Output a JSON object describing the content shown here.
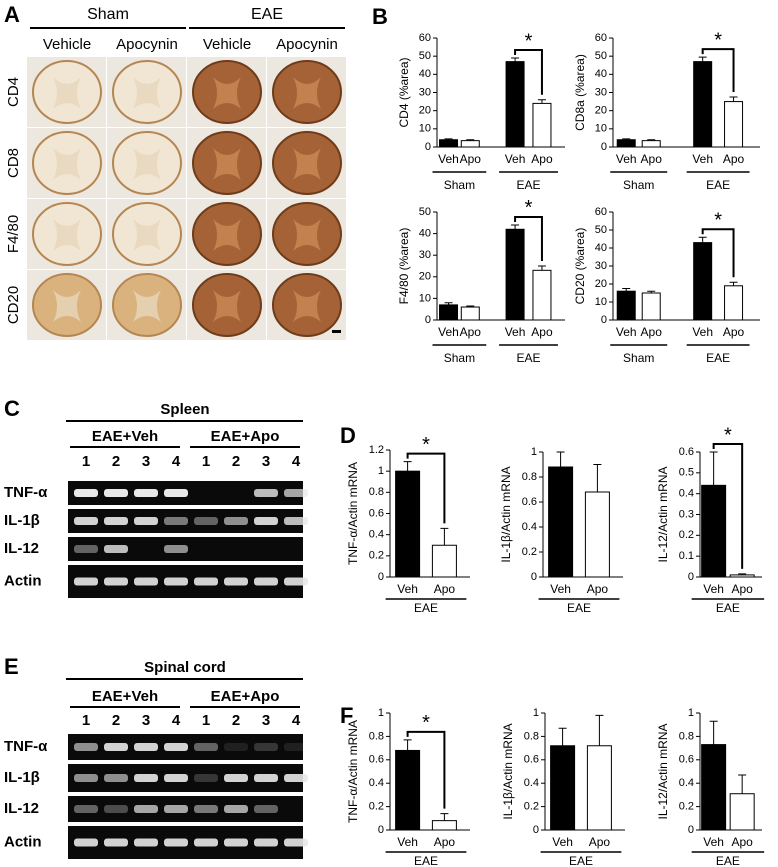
{
  "panels": {
    "A": {
      "letter": "A",
      "groups": [
        "Sham",
        "EAE"
      ],
      "conditions": [
        "Vehicle",
        "Apocynin",
        "Vehicle",
        "Apocynin"
      ],
      "stains": [
        "CD4",
        "CD8",
        "F4/80",
        "CD20"
      ]
    },
    "B": {
      "letter": "B"
    },
    "C": {
      "letter": "C",
      "tissue": "Spleen",
      "groups": [
        "EAE+Veh",
        "EAE+Apo"
      ],
      "lanes": [
        "1",
        "2",
        "3",
        "4",
        "1",
        "2",
        "3",
        "4"
      ],
      "genes": [
        "TNF-α",
        "IL-1β",
        "IL-12",
        "Actin"
      ]
    },
    "D": {
      "letter": "D"
    },
    "E": {
      "letter": "E",
      "tissue": "Spinal cord",
      "groups": [
        "EAE+Veh",
        "EAE+Apo"
      ],
      "lanes": [
        "1",
        "2",
        "3",
        "4",
        "1",
        "2",
        "3",
        "4"
      ],
      "genes": [
        "TNF-α",
        "IL-1β",
        "IL-12",
        "Actin"
      ]
    },
    "F": {
      "letter": "F"
    }
  },
  "chart_data": [
    {
      "type": "bar",
      "ylabel": "CD4 (%area)",
      "categories": [
        "Veh",
        "Apo",
        "Veh",
        "Apo"
      ],
      "groups": [
        "Sham",
        "EAE"
      ],
      "values": [
        4,
        3.5,
        47,
        24
      ],
      "errors": [
        0.5,
        0.5,
        2,
        2
      ],
      "bar_colors": [
        "#000000",
        "#ffffff"
      ],
      "ylim": [
        0,
        60
      ],
      "yticks": [
        0,
        10,
        20,
        30,
        40,
        50,
        60
      ],
      "significance": {
        "label": "*",
        "pair": [
          2,
          3
        ]
      }
    },
    {
      "type": "bar",
      "ylabel": "CD8a (%area)",
      "categories": [
        "Veh",
        "Apo",
        "Veh",
        "Apo"
      ],
      "groups": [
        "Sham",
        "EAE"
      ],
      "values": [
        4,
        3.5,
        47,
        25
      ],
      "errors": [
        0.5,
        0.5,
        2.5,
        2.5
      ],
      "bar_colors": [
        "#000000",
        "#ffffff"
      ],
      "ylim": [
        0,
        60
      ],
      "yticks": [
        0,
        10,
        20,
        30,
        40,
        50,
        60
      ],
      "significance": {
        "label": "*",
        "pair": [
          2,
          3
        ]
      }
    },
    {
      "type": "bar",
      "ylabel": "F4/80 (%area)",
      "categories": [
        "Veh",
        "Apo",
        "Veh",
        "Apo"
      ],
      "groups": [
        "Sham",
        "EAE"
      ],
      "values": [
        7,
        6,
        42,
        23
      ],
      "errors": [
        1,
        0.5,
        2,
        2
      ],
      "bar_colors": [
        "#000000",
        "#ffffff"
      ],
      "ylim": [
        0,
        50
      ],
      "yticks": [
        0,
        10,
        20,
        30,
        40,
        50
      ],
      "significance": {
        "label": "*",
        "pair": [
          2,
          3
        ]
      }
    },
    {
      "type": "bar",
      "ylabel": "CD20 (%area)",
      "categories": [
        "Veh",
        "Apo",
        "Veh",
        "Apo"
      ],
      "groups": [
        "Sham",
        "EAE"
      ],
      "values": [
        16,
        15,
        43,
        19
      ],
      "errors": [
        1.5,
        1,
        3,
        2
      ],
      "bar_colors": [
        "#000000",
        "#ffffff"
      ],
      "ylim": [
        0,
        60
      ],
      "yticks": [
        0,
        10,
        20,
        30,
        40,
        50,
        60
      ],
      "significance": {
        "label": "*",
        "pair": [
          2,
          3
        ]
      }
    },
    {
      "type": "bar",
      "ylabel": "TNF-α/Actin mRNA",
      "categories": [
        "Veh",
        "Apo"
      ],
      "groups": [
        "EAE"
      ],
      "values": [
        1.0,
        0.3
      ],
      "errors": [
        0.09,
        0.16
      ],
      "bar_colors": [
        "#000000",
        "#ffffff"
      ],
      "ylim": [
        0,
        1.2
      ],
      "yticks": [
        0,
        0.2,
        0.4,
        0.6,
        0.8,
        1,
        1.2
      ],
      "significance": {
        "label": "*",
        "pair": [
          0,
          1
        ]
      }
    },
    {
      "type": "bar",
      "ylabel": "IL-1β/Actin mRNA",
      "categories": [
        "Veh",
        "Apo"
      ],
      "groups": [
        "EAE"
      ],
      "values": [
        0.88,
        0.68
      ],
      "errors": [
        0.12,
        0.22
      ],
      "bar_colors": [
        "#000000",
        "#ffffff"
      ],
      "ylim": [
        0,
        1
      ],
      "yticks": [
        0,
        0.2,
        0.4,
        0.6,
        0.8,
        1
      ]
    },
    {
      "type": "bar",
      "ylabel": "IL-12/Actin mRNA",
      "categories": [
        "Veh",
        "Apo"
      ],
      "groups": [
        "EAE"
      ],
      "values": [
        0.44,
        0.01
      ],
      "errors": [
        0.16,
        0.005
      ],
      "bar_colors": [
        "#000000",
        "#ffffff"
      ],
      "ylim": [
        0,
        0.6
      ],
      "yticks": [
        0,
        0.1,
        0.2,
        0.3,
        0.4,
        0.5,
        0.6
      ],
      "significance": {
        "label": "*",
        "pair": [
          0,
          1
        ]
      }
    },
    {
      "type": "bar",
      "ylabel": "TNF-α/Actin mRNA",
      "categories": [
        "Veh",
        "Apo"
      ],
      "groups": [
        "EAE"
      ],
      "values": [
        0.68,
        0.08
      ],
      "errors": [
        0.09,
        0.06
      ],
      "bar_colors": [
        "#000000",
        "#ffffff"
      ],
      "ylim": [
        0,
        1
      ],
      "yticks": [
        0,
        0.2,
        0.4,
        0.6,
        0.8,
        1
      ],
      "significance": {
        "label": "*",
        "pair": [
          0,
          1
        ]
      }
    },
    {
      "type": "bar",
      "ylabel": "IL-1β/Actin mRNA",
      "categories": [
        "Veh",
        "Apo"
      ],
      "groups": [
        "EAE"
      ],
      "values": [
        0.72,
        0.72
      ],
      "errors": [
        0.15,
        0.26
      ],
      "bar_colors": [
        "#000000",
        "#ffffff"
      ],
      "ylim": [
        0,
        1
      ],
      "yticks": [
        0,
        0.2,
        0.4,
        0.6,
        0.8,
        1
      ]
    },
    {
      "type": "bar",
      "ylabel": "IL-12/Actin mRNA",
      "categories": [
        "Veh",
        "Apo"
      ],
      "groups": [
        "EAE"
      ],
      "values": [
        0.73,
        0.31
      ],
      "errors": [
        0.2,
        0.16
      ],
      "bar_colors": [
        "#000000",
        "#ffffff"
      ],
      "ylim": [
        0,
        1
      ],
      "yticks": [
        0,
        0.2,
        0.4,
        0.6,
        0.8,
        1
      ]
    }
  ]
}
